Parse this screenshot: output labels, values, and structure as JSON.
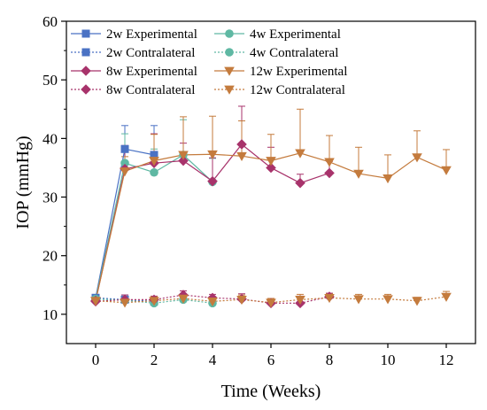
{
  "chart_data": {
    "type": "line",
    "xlabel": "Time (Weeks)",
    "ylabel": "IOP (mmHg)",
    "xlim": [
      -1,
      13
    ],
    "ylim": [
      5,
      60
    ],
    "xticks": [
      0,
      2,
      4,
      6,
      8,
      10,
      12
    ],
    "yticks": [
      10,
      20,
      30,
      40,
      50,
      60
    ],
    "grid": false,
    "legend_position": "top-left",
    "series": [
      {
        "name": "2w Experimental",
        "color": "#4a72c4",
        "marker": "square",
        "dash": "solid",
        "x": [
          0,
          1,
          2
        ],
        "y": [
          12.8,
          38.2,
          37.2
        ],
        "err": [
          0.5,
          4.0,
          5.0
        ]
      },
      {
        "name": "2w Contralateral",
        "color": "#4a72c4",
        "marker": "square",
        "dash": "dotted",
        "x": [
          0,
          1,
          2
        ],
        "y": [
          12.8,
          12.5,
          12.2
        ],
        "err": [
          0.5,
          0.8,
          0.6
        ]
      },
      {
        "name": "4w Experimental",
        "color": "#5fb8a3",
        "marker": "circle",
        "dash": "solid",
        "x": [
          0,
          1,
          2,
          3,
          4
        ],
        "y": [
          12.6,
          35.8,
          34.2,
          37.2,
          32.6
        ],
        "err": [
          0.6,
          5.0,
          4.0,
          6.0,
          4.0
        ]
      },
      {
        "name": "4w Contralateral",
        "color": "#5fb8a3",
        "marker": "circle",
        "dash": "dotted",
        "x": [
          0,
          1,
          2,
          3,
          4
        ],
        "y": [
          12.6,
          12.4,
          11.9,
          12.5,
          11.9
        ],
        "err": [
          0.6,
          0.7,
          0.6,
          0.8,
          0.7
        ]
      },
      {
        "name": "8w Experimental",
        "color": "#a8336b",
        "marker": "diamond",
        "dash": "solid",
        "x": [
          0,
          1,
          2,
          3,
          4,
          5,
          6,
          7,
          8
        ],
        "y": [
          12.3,
          34.8,
          35.8,
          36.2,
          32.7,
          39.0,
          35.0,
          32.4,
          34.1
        ],
        "err": [
          0.6,
          4.0,
          5.0,
          3.0,
          4.0,
          6.5,
          3.5,
          1.5,
          2.0
        ]
      },
      {
        "name": "8w Contralateral",
        "color": "#a8336b",
        "marker": "diamond",
        "dash": "dotted",
        "x": [
          0,
          1,
          2,
          3,
          4,
          5,
          6,
          7,
          8
        ],
        "y": [
          12.2,
          12.5,
          12.5,
          13.3,
          12.8,
          12.6,
          11.9,
          11.9,
          13.0
        ],
        "err": [
          0.6,
          0.8,
          0.6,
          0.7,
          0.6,
          0.9,
          0.8,
          1.2,
          0.6
        ]
      },
      {
        "name": "12w Experimental",
        "color": "#c47b3d",
        "marker": "triangle-down",
        "dash": "solid",
        "x": [
          0,
          1,
          2,
          3,
          4,
          5,
          6,
          7,
          8,
          9,
          10,
          11,
          12
        ],
        "y": [
          12.3,
          34.4,
          36.2,
          37.2,
          37.3,
          37.0,
          36.2,
          37.5,
          36.0,
          34.0,
          33.2,
          36.8,
          34.6
        ],
        "err": [
          0.6,
          2.5,
          4.5,
          6.5,
          6.5,
          6.0,
          4.5,
          7.5,
          4.5,
          4.5,
          4.0,
          4.5,
          3.5
        ]
      },
      {
        "name": "12w Contralateral",
        "color": "#c47b3d",
        "marker": "triangle-down",
        "dash": "dotted",
        "x": [
          0,
          1,
          2,
          3,
          4,
          5,
          6,
          7,
          8,
          9,
          10,
          11,
          12
        ],
        "y": [
          12.3,
          12.0,
          12.3,
          12.7,
          12.2,
          12.5,
          12.0,
          12.5,
          12.8,
          12.6,
          12.6,
          12.3,
          13.0
        ],
        "err": [
          0.6,
          0.8,
          0.7,
          0.8,
          0.7,
          0.8,
          0.7,
          0.9,
          0.7,
          0.8,
          0.8,
          0.6,
          0.9
        ]
      }
    ]
  }
}
